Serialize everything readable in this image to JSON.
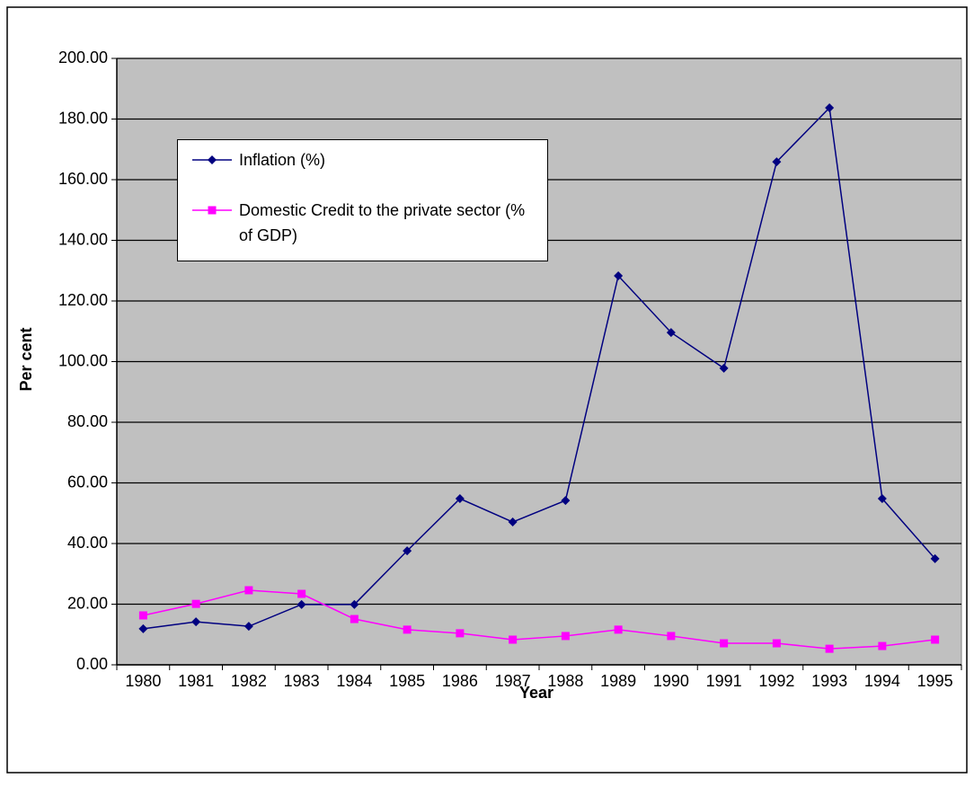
{
  "chart_data": {
    "type": "line",
    "x_label": "Year",
    "y_label": "Per cent",
    "categories": [
      "1980",
      "1981",
      "1982",
      "1983",
      "1984",
      "1985",
      "1986",
      "1987",
      "1988",
      "1989",
      "1990",
      "1991",
      "1992",
      "1993",
      "1994",
      "1995"
    ],
    "series": [
      {
        "name": "Inflation (%)",
        "color": "#000080",
        "marker": "diamond",
        "values": [
          11.9,
          14.2,
          12.7,
          19.9,
          19.9,
          37.6,
          54.8,
          47.1,
          54.2,
          128.3,
          109.6,
          97.8,
          165.9,
          183.7,
          54.8,
          35.0
        ]
      },
      {
        "name": "Domestic Credit to the private sector (% of GDP)",
        "color": "#ff00ff",
        "marker": "square",
        "values": [
          16.3,
          20.1,
          24.6,
          23.4,
          15.1,
          11.6,
          10.4,
          8.3,
          9.5,
          11.6,
          9.5,
          7.1,
          7.1,
          5.3,
          6.2,
          8.3
        ]
      }
    ],
    "ylim": [
      0,
      200
    ],
    "yticks": [
      {
        "value": 0,
        "label": "0.00"
      },
      {
        "value": 20,
        "label": "20.00"
      },
      {
        "value": 40,
        "label": "40.00"
      },
      {
        "value": 60,
        "label": "60.00"
      },
      {
        "value": 80,
        "label": "80.00"
      },
      {
        "value": 100,
        "label": "100.00"
      },
      {
        "value": 120,
        "label": "120.00"
      },
      {
        "value": 140,
        "label": "140.00"
      },
      {
        "value": 160,
        "label": "160.00"
      },
      {
        "value": 180,
        "label": "180.00"
      },
      {
        "value": 200,
        "label": "200.00"
      }
    ],
    "grid": true,
    "background": "#c0c0c0"
  }
}
